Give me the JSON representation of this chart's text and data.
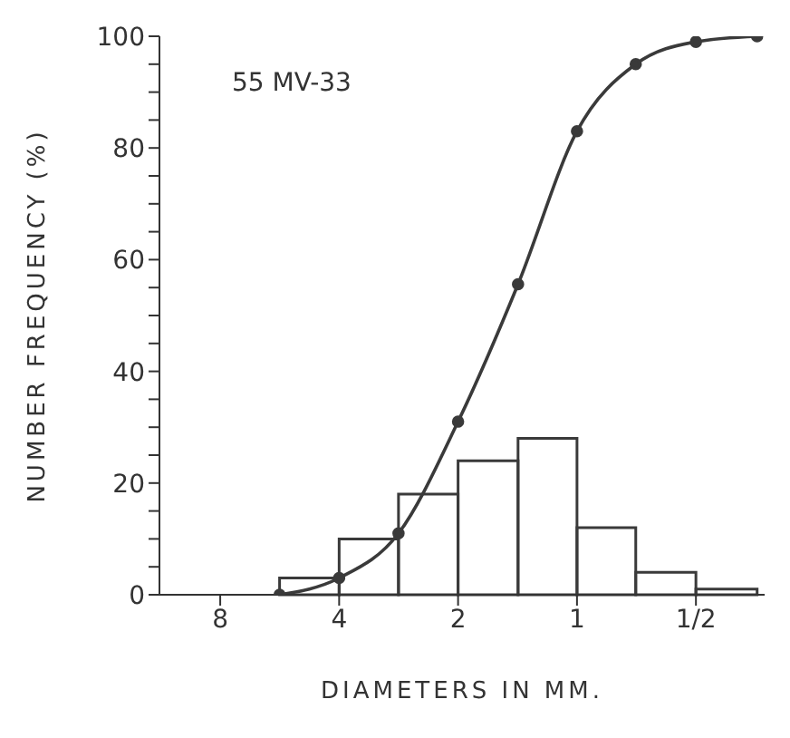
{
  "chart_data": {
    "type": "histogram",
    "xlabel": "DIAMETERS IN MM.",
    "ylabel": "NUMBER FREQUENCY (%)",
    "annotations": [
      "55 MV-33"
    ],
    "log": "x",
    "grid": false,
    "legend": false,
    "xlim": [
      11.4,
      0.335
    ],
    "xticks": [
      8,
      4,
      2,
      1,
      {
        "value": 0.5,
        "label": "1/2"
      }
    ],
    "ylim": [
      0,
      100
    ],
    "yticks": [
      0,
      {
        "value": 5,
        "label": null
      },
      {
        "value": 10,
        "label": null
      },
      {
        "value": 15,
        "label": null
      },
      20,
      {
        "value": 25,
        "label": null
      },
      {
        "value": 30,
        "label": null
      },
      {
        "value": 35,
        "label": null
      },
      40,
      {
        "value": 45,
        "label": null
      },
      {
        "value": 50,
        "label": null
      },
      {
        "value": 55,
        "label": null
      },
      60,
      {
        "value": 65,
        "label": null
      },
      {
        "value": 70,
        "label": null
      },
      {
        "value": 75,
        "label": null
      },
      80,
      {
        "value": 85,
        "label": null
      },
      {
        "value": 90,
        "label": null
      },
      {
        "value": 95,
        "label": null
      },
      100
    ],
    "series": [
      {
        "color": "#3a3a3a",
        "bins": [
          5.66,
          4,
          2.83,
          2,
          1.41,
          1,
          0.71,
          0.5,
          0.35
        ],
        "values": [
          3,
          10,
          18,
          24,
          28,
          12,
          4,
          1
        ]
      },
      {
        "type": "line",
        "color": "#3a3a3a",
        "marker": "circle",
        "x": [
          5.66,
          4,
          2.83,
          2,
          1.41,
          1,
          0.71,
          0.5,
          0.35
        ],
        "values": [
          0,
          3,
          11,
          31,
          55.6,
          83,
          95,
          99,
          100
        ]
      }
    ]
  }
}
